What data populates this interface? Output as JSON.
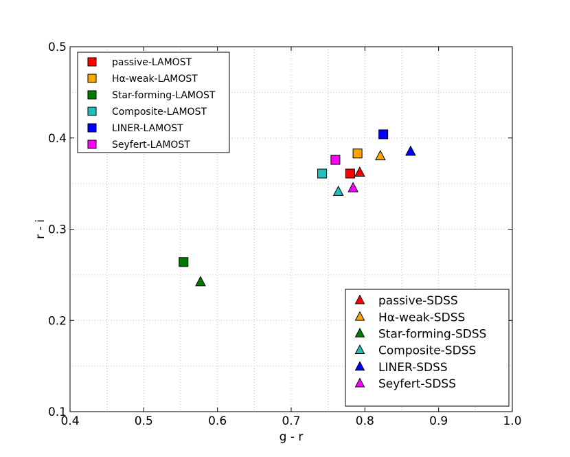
{
  "chart_data": {
    "type": "scatter",
    "title": "",
    "xlabel": "g - r",
    "ylabel": "r - i",
    "xlim": [
      0.4,
      1.0
    ],
    "ylim": [
      0.1,
      0.5
    ],
    "xticks": [
      0.4,
      0.5,
      0.6,
      0.7,
      0.8,
      0.9,
      1.0
    ],
    "yticks": [
      0.1,
      0.2,
      0.3,
      0.4,
      0.5
    ],
    "xtick_labels": [
      "0.4",
      "0.5",
      "0.6",
      "0.7",
      "0.8",
      "0.9",
      "1.0"
    ],
    "ytick_labels": [
      "0.1",
      "0.2",
      "0.3",
      "0.4",
      "0.5"
    ],
    "grid": true,
    "legends": [
      {
        "placement": "top-left",
        "marker": "square",
        "entries": [
          "passive-LAMOST",
          "Hα-weak-LAMOST",
          "Star-forming-LAMOST",
          "Composite-LAMOST",
          "LINER-LAMOST",
          "Seyfert-LAMOST"
        ]
      },
      {
        "placement": "bottom-right",
        "marker": "triangle",
        "entries": [
          "passive-SDSS",
          "Hα-weak-SDSS",
          "Star-forming-SDSS",
          "Composite-SDSS",
          "LINER-SDSS",
          "Seyfert-SDSS"
        ]
      }
    ],
    "series": [
      {
        "name": "passive-LAMOST",
        "marker": "square",
        "color": "#ff0000",
        "x": 0.78,
        "y": 0.361
      },
      {
        "name": "Hα-weak-LAMOST",
        "marker": "square",
        "color": "#ffa500",
        "x": 0.79,
        "y": 0.383
      },
      {
        "name": "Star-forming-LAMOST",
        "marker": "square",
        "color": "#007a00",
        "x": 0.554,
        "y": 0.264
      },
      {
        "name": "Composite-LAMOST",
        "marker": "square",
        "color": "#20c0c0",
        "x": 0.742,
        "y": 0.361
      },
      {
        "name": "LINER-LAMOST",
        "marker": "square",
        "color": "#0000ff",
        "x": 0.825,
        "y": 0.404
      },
      {
        "name": "Seyfert-LAMOST",
        "marker": "square",
        "color": "#ff00ff",
        "x": 0.76,
        "y": 0.376
      },
      {
        "name": "passive-SDSS",
        "marker": "triangle",
        "color": "#ff0000",
        "x": 0.793,
        "y": 0.362
      },
      {
        "name": "Hα-weak-SDSS",
        "marker": "triangle",
        "color": "#ffa500",
        "x": 0.821,
        "y": 0.38
      },
      {
        "name": "Star-forming-SDSS",
        "marker": "triangle",
        "color": "#007a00",
        "x": 0.577,
        "y": 0.242
      },
      {
        "name": "Composite-SDSS",
        "marker": "triangle",
        "color": "#20c0c0",
        "x": 0.764,
        "y": 0.341
      },
      {
        "name": "LINER-SDSS",
        "marker": "triangle",
        "color": "#0000ff",
        "x": 0.862,
        "y": 0.385
      },
      {
        "name": "Seyfert-SDSS",
        "marker": "triangle",
        "color": "#ff00ff",
        "x": 0.784,
        "y": 0.345
      }
    ]
  }
}
